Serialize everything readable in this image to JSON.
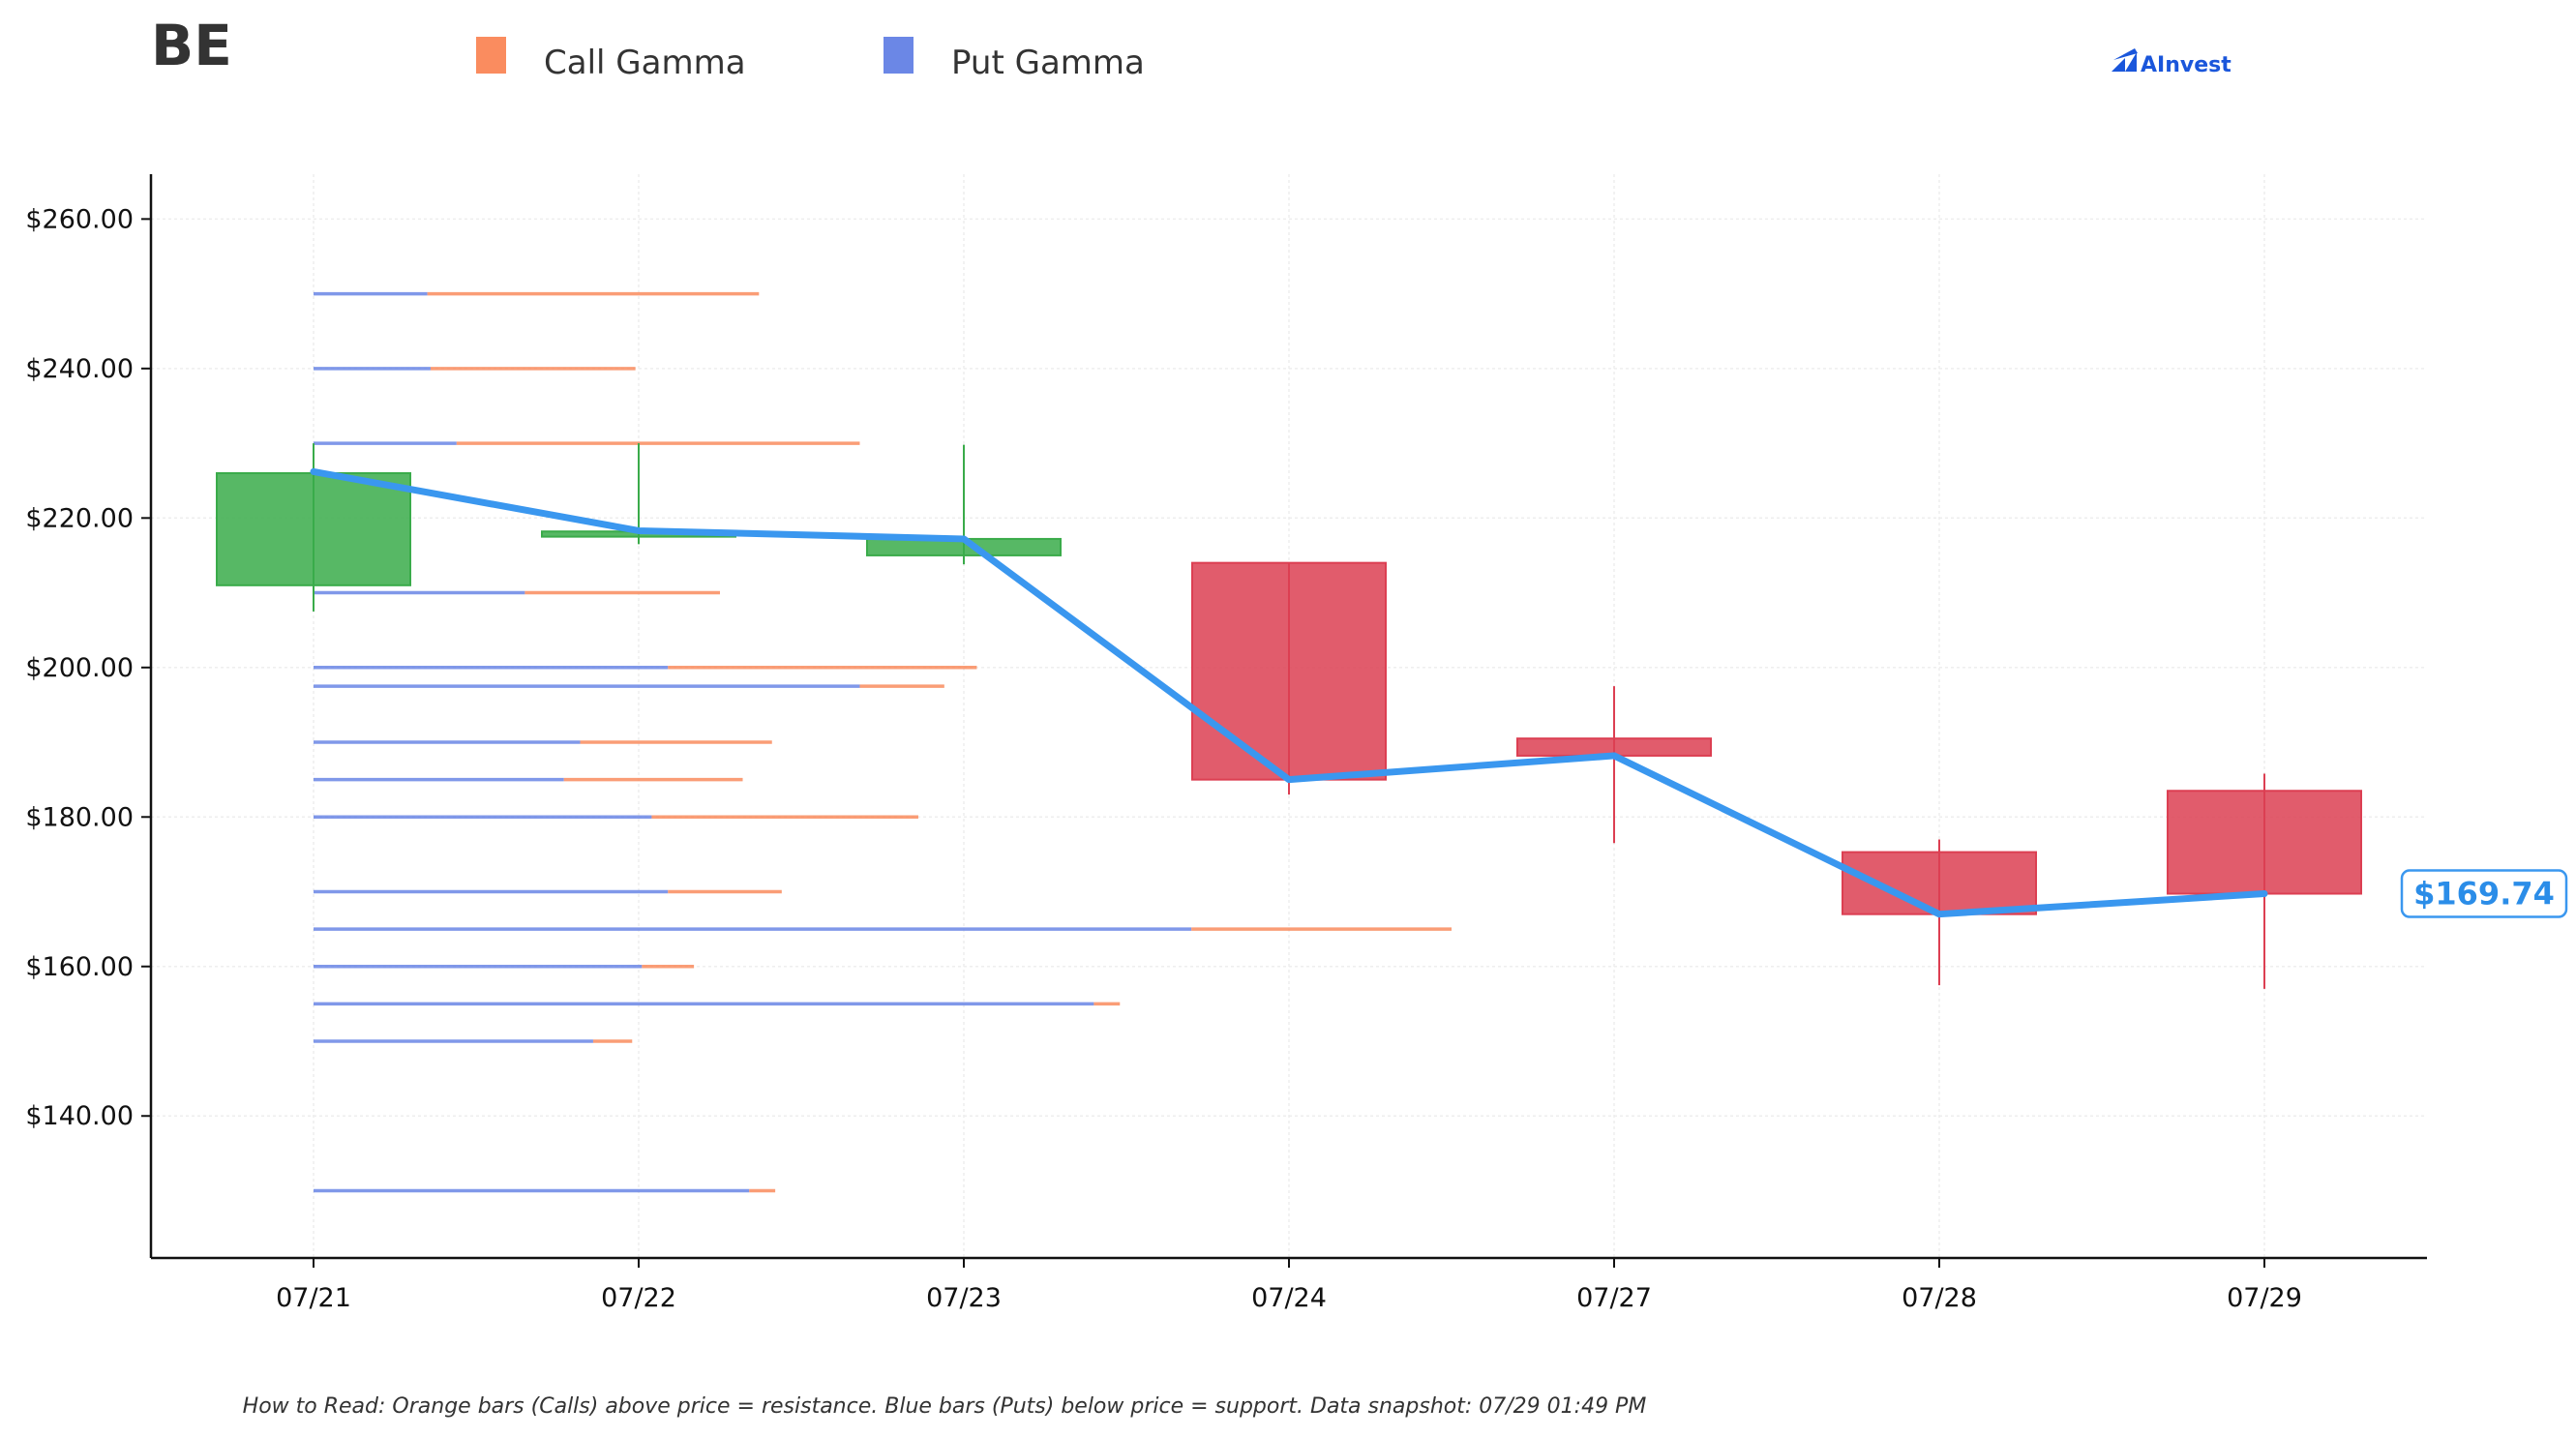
{
  "ticker": "BE",
  "brand": "AInvest",
  "footnote": "How to Read: Orange bars (Calls) above price = resistance. Blue bars (Puts) below price = support. Data snapshot: 07/29 01:49 PM",
  "colors": {
    "call": "#fa8c5f",
    "put": "#6b87e6",
    "up": "#3aab4a",
    "down": "#dc3f52",
    "price_line": "#3a97ef",
    "brand": "#1a56db"
  },
  "chart_data": {
    "type": "candlestick",
    "legend": [
      {
        "name": "Call Gamma",
        "color": "#fa8c5f"
      },
      {
        "name": "Put Gamma",
        "color": "#6b87e6"
      }
    ],
    "legend_position": "top",
    "categories": [
      "07/21",
      "07/22",
      "07/23",
      "07/24",
      "07/27",
      "07/28",
      "07/29"
    ],
    "ylim": [
      121,
      266
    ],
    "yticks": [
      140,
      160,
      180,
      200,
      220,
      240,
      260
    ],
    "ytick_labels": [
      "$140.00",
      "$160.00",
      "$180.00",
      "$200.00",
      "$220.00",
      "$240.00",
      "$260.00"
    ],
    "grid": true,
    "candles": [
      {
        "date": "07/21",
        "open": 211,
        "high": 230,
        "low": 207.5,
        "close": 226
      },
      {
        "date": "07/22",
        "open": 217.5,
        "high": 230,
        "low": 216.5,
        "close": 218.2
      },
      {
        "date": "07/23",
        "open": 215,
        "high": 229.8,
        "low": 213.8,
        "close": 217.2
      },
      {
        "date": "07/24",
        "open": 214,
        "high": 214,
        "low": 183,
        "close": 185
      },
      {
        "date": "07/27",
        "open": 190.5,
        "high": 197.5,
        "low": 176.5,
        "close": 188.2
      },
      {
        "date": "07/28",
        "open": 175.3,
        "high": 177,
        "low": 157.5,
        "close": 167
      },
      {
        "date": "07/29",
        "open": 183.5,
        "high": 185.8,
        "low": 157,
        "close": 169.74
      }
    ],
    "price_line": [
      {
        "date": "07/21",
        "value": 226.2
      },
      {
        "date": "07/22",
        "value": 218.3
      },
      {
        "date": "07/23",
        "value": 217.2
      },
      {
        "date": "07/24",
        "value": 185
      },
      {
        "date": "07/27",
        "value": 188.2
      },
      {
        "date": "07/28",
        "value": 167
      },
      {
        "date": "07/29",
        "value": 169.74
      }
    ],
    "last_price_label": "$169.74",
    "gamma_levels": [
      {
        "strike": 250,
        "put": 0.35,
        "call": 1.02
      },
      {
        "strike": 240,
        "put": 0.36,
        "call": 0.63
      },
      {
        "strike": 230,
        "put": 0.44,
        "call": 1.24
      },
      {
        "strike": 210,
        "put": 0.65,
        "call": 0.6
      },
      {
        "strike": 200,
        "put": 1.09,
        "call": 0.95
      },
      {
        "strike": 197.5,
        "put": 1.68,
        "call": 0.26
      },
      {
        "strike": 190,
        "put": 0.82,
        "call": 0.59
      },
      {
        "strike": 185,
        "put": 0.77,
        "call": 0.55
      },
      {
        "strike": 180,
        "put": 1.04,
        "call": 0.82
      },
      {
        "strike": 170,
        "put": 1.09,
        "call": 0.35
      },
      {
        "strike": 165,
        "put": 2.7,
        "call": 0.8
      },
      {
        "strike": 160,
        "put": 1.01,
        "call": 0.16
      },
      {
        "strike": 155,
        "put": 2.4,
        "call": 0.08
      },
      {
        "strike": 150,
        "put": 0.86,
        "call": 0.12
      },
      {
        "strike": 130,
        "put": 1.34,
        "call": 0.08
      }
    ]
  }
}
